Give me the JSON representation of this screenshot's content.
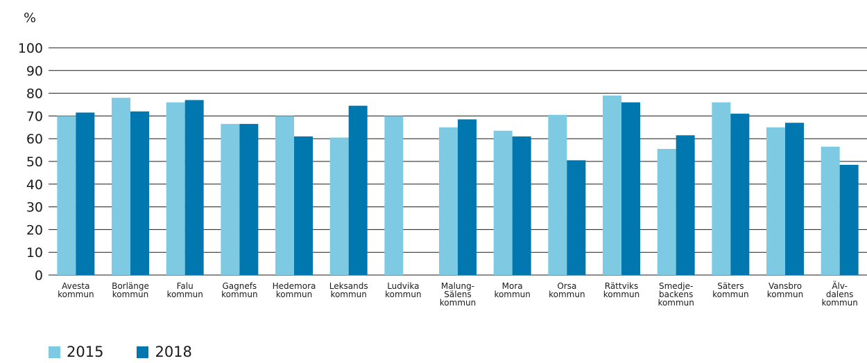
{
  "chart_data": {
    "type": "bar",
    "ylabel": "%",
    "ylim": [
      0,
      100
    ],
    "yticks": [
      0,
      10,
      20,
      30,
      40,
      50,
      60,
      70,
      80,
      90,
      100
    ],
    "grid": true,
    "legend_position": "bottom-left",
    "categories": [
      [
        "Avesta",
        "kommun"
      ],
      [
        "Borlänge",
        "kommun"
      ],
      [
        "Falu",
        "kommun"
      ],
      [
        "Gagnefs",
        "kommun"
      ],
      [
        "Hedemora",
        "kommun"
      ],
      [
        "Leksands",
        "kommun"
      ],
      [
        "Ludvika",
        "kommun"
      ],
      [
        "Malung-",
        "Sälens",
        "kommun"
      ],
      [
        "Mora",
        "kommun"
      ],
      [
        "Orsa",
        "kommun"
      ],
      [
        "Rättviks",
        "kommun"
      ],
      [
        "Smedje-",
        "backens",
        "kommun"
      ],
      [
        "Säters",
        "kommun"
      ],
      [
        "Vansbro",
        "kommun"
      ],
      [
        "Älv-",
        "dalens",
        "kommun"
      ]
    ],
    "series": [
      {
        "name": "2015",
        "color": "#7ecae3",
        "values": [
          70,
          78,
          76,
          66.5,
          70,
          60.5,
          70,
          65,
          63.5,
          70.5,
          79,
          55.5,
          76,
          65,
          56.5
        ]
      },
      {
        "name": "2018",
        "color": "#0077ae",
        "values": [
          71.5,
          72,
          77,
          66.5,
          61,
          74.5,
          null,
          68.5,
          61,
          50.5,
          76,
          61.5,
          71,
          67,
          48.5
        ]
      }
    ]
  }
}
